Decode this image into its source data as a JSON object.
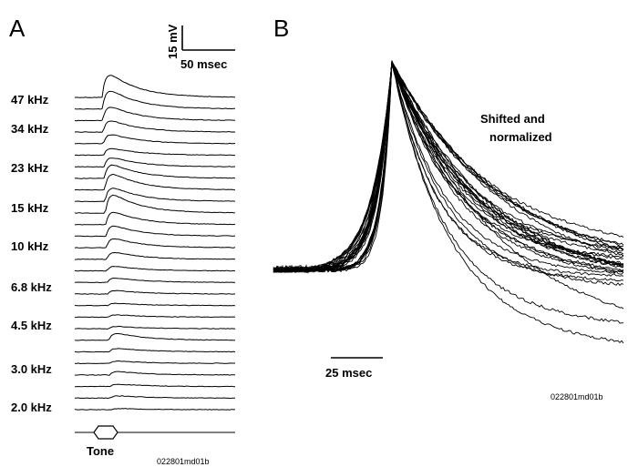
{
  "chart_data": [
    {
      "panel": "A",
      "type": "line",
      "scale_bar": {
        "y_value": 15,
        "y_label": "15 mV",
        "x_value": 50,
        "x_label": "50 msec"
      },
      "frequency_labels": [
        "47 kHz",
        "34 kHz",
        "23 kHz",
        "15 kHz",
        "10 kHz",
        "6.8 kHz",
        "4.5 kHz",
        "3.0 kHz",
        "2.0 kHz"
      ],
      "stimulus_label": "Tone",
      "file_label": "022801md01b",
      "trace_count": 28,
      "peak_amplitudes_mV": [
        20,
        16,
        12,
        10,
        8,
        6,
        8,
        12,
        14,
        12,
        16,
        11,
        9,
        8,
        6,
        4,
        4,
        3,
        2,
        2,
        2,
        6,
        3,
        2,
        3,
        2,
        2,
        1
      ]
    },
    {
      "panel": "B",
      "type": "line",
      "annotation": [
        "Shifted and",
        "normalized"
      ],
      "scale_bar": {
        "x_value": 25,
        "x_label": "25 msec"
      },
      "file_label": "022801md01b",
      "trace_count": 28,
      "normalized_peak": 1.0
    }
  ]
}
